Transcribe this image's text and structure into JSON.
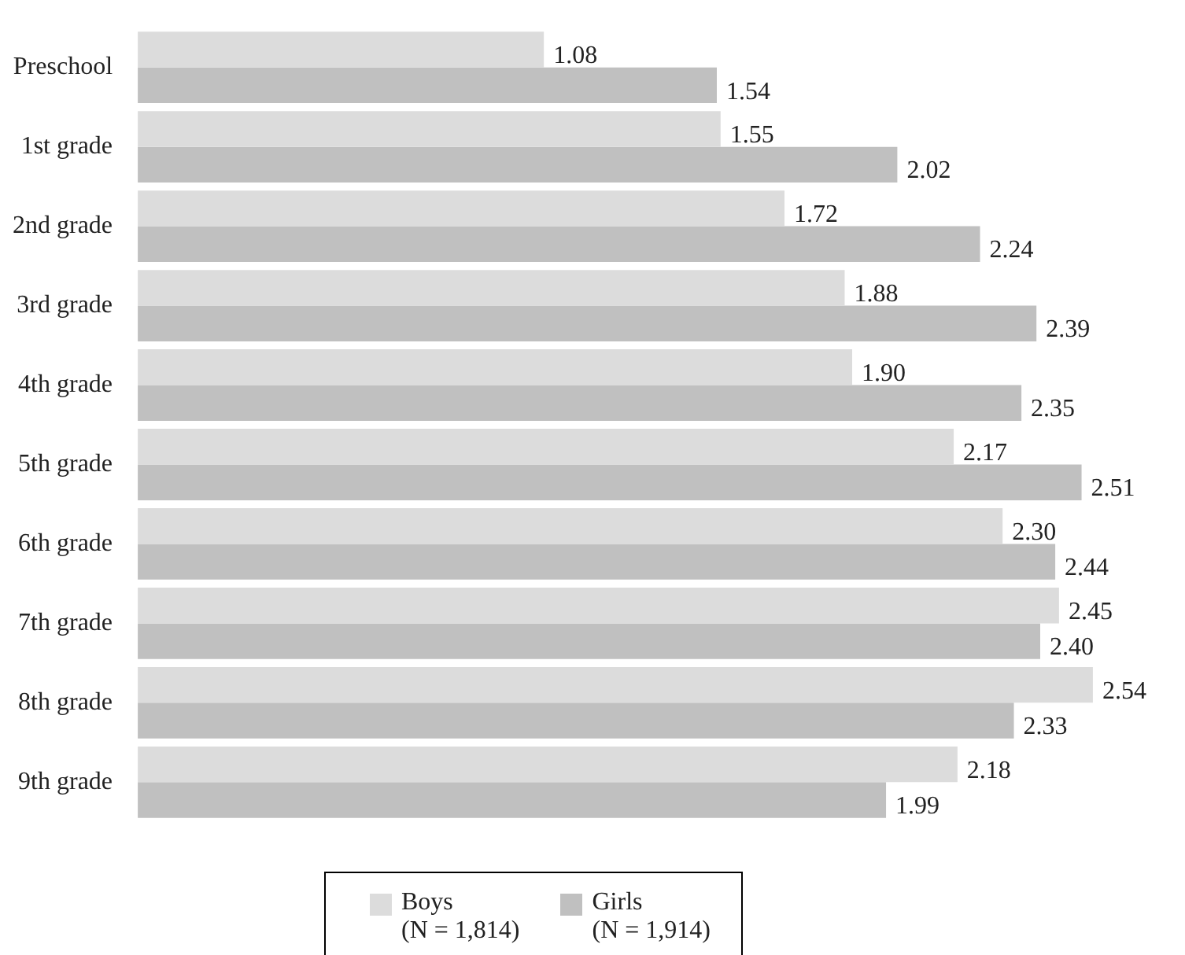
{
  "chart_data": {
    "type": "bar",
    "orientation": "horizontal",
    "categories": [
      "Preschool",
      "1st grade",
      "2nd grade",
      "3rd grade",
      "4th grade",
      "5th grade",
      "6th grade",
      "7th grade",
      "8th grade",
      "9th grade"
    ],
    "series": [
      {
        "name": "Boys (N = 1,814)",
        "color": "#dcdcdc",
        "values": [
          1.08,
          1.55,
          1.72,
          1.88,
          1.9,
          2.17,
          2.3,
          2.45,
          2.54,
          2.18
        ],
        "value_labels": [
          "1.08",
          "1.55",
          "1.72",
          "1.88",
          "1.90",
          "2.17",
          "2.30",
          "2.45",
          "2.54",
          "2.18"
        ]
      },
      {
        "name": "Girls (N = 1,914)",
        "color": "#c0c0c0",
        "values": [
          1.54,
          2.02,
          2.24,
          2.39,
          2.35,
          2.51,
          2.44,
          2.4,
          2.33,
          1.99
        ],
        "value_labels": [
          "1.54",
          "2.02",
          "2.24",
          "2.39",
          "2.35",
          "2.51",
          "2.44",
          "2.40",
          "2.33",
          "1.99"
        ]
      }
    ],
    "legend": "bottom",
    "tick_labels": "y"
  }
}
